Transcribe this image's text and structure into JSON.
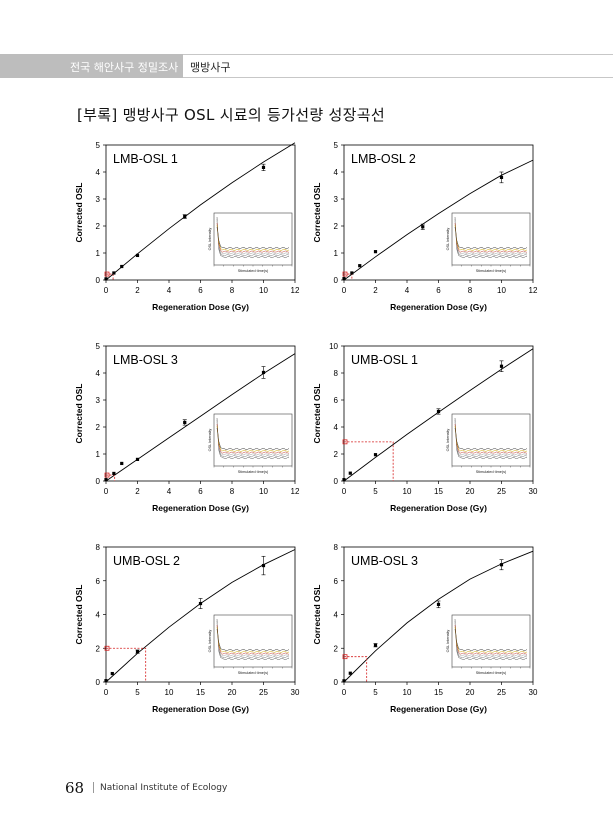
{
  "header": {
    "section": "전국 해안사구 정밀조사",
    "subsection": "맹방사구"
  },
  "page_title": "[부록] 맹방사구 OSL 시료의 등가선량 성장곡선",
  "footer": {
    "page_number": "68",
    "org": "National Institute of Ecology"
  },
  "chart_data": [
    {
      "type": "scatter",
      "title": "LMB-OSL 1",
      "xlabel": "Regeneration Dose (Gy)",
      "ylabel": "Corrected OSL",
      "xlim": [
        0,
        12
      ],
      "ylim": [
        0,
        5
      ],
      "xticks": [
        0,
        2,
        4,
        6,
        8,
        10,
        12
      ],
      "yticks": [
        0,
        1,
        2,
        3,
        4,
        5
      ],
      "points": [
        [
          0,
          0.04,
          0.03
        ],
        [
          0.5,
          0.26,
          0.03
        ],
        [
          1,
          0.5,
          0.03
        ],
        [
          2,
          0.91,
          0.04
        ],
        [
          5,
          2.35,
          0.07
        ],
        [
          10,
          4.17,
          0.12
        ]
      ],
      "curve": [
        [
          0,
          0
        ],
        [
          2,
          0.97
        ],
        [
          4,
          1.9
        ],
        [
          6,
          2.78
        ],
        [
          8,
          3.6
        ],
        [
          10,
          4.37
        ],
        [
          12,
          5.08
        ]
      ],
      "de": {
        "x": 0.45,
        "y": 0.22
      },
      "inset": {
        "xlabel": "Stimulated time(s)",
        "ylabel": "OSL Intensity"
      }
    },
    {
      "type": "scatter",
      "title": "LMB-OSL 2",
      "xlabel": "Regeneration Dose (Gy)",
      "ylabel": "Corrected OSL",
      "xlim": [
        0,
        12
      ],
      "ylim": [
        0,
        5
      ],
      "xticks": [
        0,
        2,
        4,
        6,
        8,
        10,
        12
      ],
      "yticks": [
        0,
        1,
        2,
        3,
        4,
        5
      ],
      "points": [
        [
          0,
          0.05,
          0.03
        ],
        [
          0.5,
          0.26,
          0.03
        ],
        [
          1,
          0.53,
          0.03
        ],
        [
          2,
          1.05,
          0.05
        ],
        [
          5,
          1.97,
          0.1
        ],
        [
          10,
          3.8,
          0.2
        ]
      ],
      "curve": [
        [
          0,
          0
        ],
        [
          2,
          0.86
        ],
        [
          4,
          1.68
        ],
        [
          6,
          2.46
        ],
        [
          8,
          3.2
        ],
        [
          10,
          3.88
        ],
        [
          12,
          4.44
        ]
      ],
      "de": {
        "x": 0.5,
        "y": 0.22
      },
      "inset": {
        "xlabel": "Stimulated time(s)",
        "ylabel": "OSL Intensity"
      }
    },
    {
      "type": "scatter",
      "title": "LMB-OSL 3",
      "xlabel": "Regeneration Dose (Gy)",
      "ylabel": "Corrected OSL",
      "xlim": [
        0,
        12
      ],
      "ylim": [
        0,
        5
      ],
      "xticks": [
        0,
        2,
        4,
        6,
        8,
        10,
        12
      ],
      "yticks": [
        0,
        1,
        2,
        3,
        4,
        5
      ],
      "points": [
        [
          0,
          0.05,
          0.03
        ],
        [
          0.5,
          0.28,
          0.03
        ],
        [
          1,
          0.65,
          0.03
        ],
        [
          2,
          0.8,
          0.04
        ],
        [
          5,
          2.17,
          0.1
        ],
        [
          10,
          4.02,
          0.22
        ]
      ],
      "curve": [
        [
          0,
          0
        ],
        [
          2,
          0.8
        ],
        [
          4,
          1.6
        ],
        [
          6,
          2.4
        ],
        [
          8,
          3.2
        ],
        [
          10,
          3.98
        ],
        [
          12,
          4.72
        ]
      ],
      "de": {
        "x": 0.55,
        "y": 0.22
      },
      "inset": {
        "xlabel": "Stimulated time(s)",
        "ylabel": "OSL Intensity"
      }
    },
    {
      "type": "scatter",
      "title": "UMB-OSL 1",
      "xlabel": "Regeneration Dose (Gy)",
      "ylabel": "Corrected OSL",
      "xlim": [
        0,
        30
      ],
      "ylim": [
        0,
        10
      ],
      "xticks": [
        0,
        5,
        10,
        15,
        20,
        25,
        30
      ],
      "yticks": [
        0,
        2,
        4,
        6,
        8,
        10
      ],
      "points": [
        [
          0,
          0.1,
          0.05
        ],
        [
          1,
          0.58,
          0.05
        ],
        [
          5,
          1.95,
          0.08
        ],
        [
          15,
          5.15,
          0.2
        ],
        [
          25,
          8.5,
          0.4
        ]
      ],
      "curve": [
        [
          0,
          0
        ],
        [
          5,
          1.75
        ],
        [
          10,
          3.45
        ],
        [
          15,
          5.1
        ],
        [
          20,
          6.7
        ],
        [
          25,
          8.28
        ],
        [
          30,
          9.8
        ]
      ],
      "de": {
        "x": 7.8,
        "y": 2.9
      },
      "inset": {
        "xlabel": "Stimulated time(s)",
        "ylabel": "OSL Intensity"
      }
    },
    {
      "type": "scatter",
      "title": "UMB-OSL 2",
      "xlabel": "Regeneration Dose (Gy)",
      "ylabel": "Corrected OSL",
      "xlim": [
        0,
        30
      ],
      "ylim": [
        0,
        8
      ],
      "xticks": [
        0,
        5,
        10,
        15,
        20,
        25,
        30
      ],
      "yticks": [
        0,
        2,
        4,
        6,
        8
      ],
      "points": [
        [
          0,
          0.08,
          0.05
        ],
        [
          1,
          0.5,
          0.05
        ],
        [
          5,
          1.8,
          0.1
        ],
        [
          15,
          4.65,
          0.3
        ],
        [
          25,
          6.9,
          0.55
        ]
      ],
      "curve": [
        [
          0,
          0
        ],
        [
          5,
          1.7
        ],
        [
          10,
          3.25
        ],
        [
          15,
          4.65
        ],
        [
          20,
          5.9
        ],
        [
          25,
          6.95
        ],
        [
          30,
          7.85
        ]
      ],
      "de": {
        "x": 6.3,
        "y": 2.0
      },
      "inset": {
        "xlabel": "Stimulated time(s)",
        "ylabel": "OSL Intensity"
      }
    },
    {
      "type": "scatter",
      "title": "UMB-OSL 3",
      "xlabel": "Regeneration Dose (Gy)",
      "ylabel": "Corrected OSL",
      "xlim": [
        0,
        30
      ],
      "ylim": [
        0,
        8
      ],
      "xticks": [
        0,
        5,
        10,
        15,
        20,
        25,
        30
      ],
      "yticks": [
        0,
        2,
        4,
        6,
        8
      ],
      "points": [
        [
          0,
          0.07,
          0.05
        ],
        [
          1,
          0.52,
          0.05
        ],
        [
          5,
          2.18,
          0.1
        ],
        [
          15,
          4.6,
          0.2
        ],
        [
          25,
          6.95,
          0.3
        ]
      ],
      "curve": [
        [
          0,
          0
        ],
        [
          5,
          1.85
        ],
        [
          10,
          3.5
        ],
        [
          15,
          4.9
        ],
        [
          20,
          6.1
        ],
        [
          25,
          7.0
        ],
        [
          30,
          7.75
        ]
      ],
      "de": {
        "x": 3.6,
        "y": 1.5
      },
      "inset": {
        "xlabel": "Stimulated time(s)",
        "ylabel": "OSL Intensity"
      }
    }
  ]
}
